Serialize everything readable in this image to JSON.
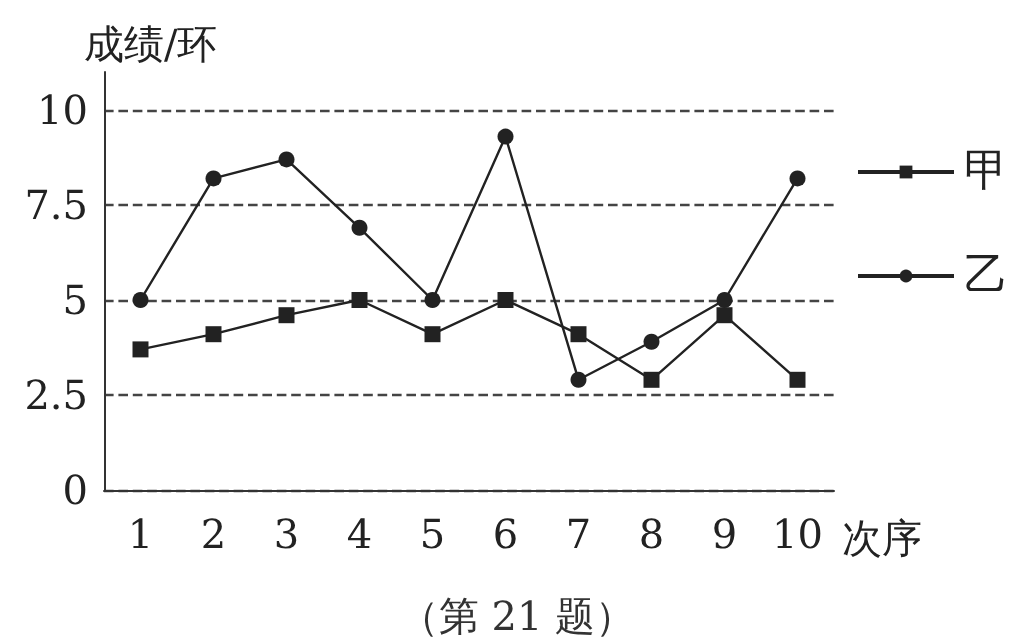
{
  "chart_data": {
    "type": "line",
    "xlabel": "次序",
    "ylabel": "成绩/环",
    "annotations": [
      "（第 21 题）"
    ],
    "categories": [
      "1",
      "2",
      "3",
      "4",
      "5",
      "6",
      "7",
      "8",
      "9",
      "10"
    ],
    "series": [
      {
        "name": "甲",
        "color": "#222222",
        "marker": "square",
        "values": [
          3.7,
          4.1,
          4.6,
          5,
          4.1,
          5,
          4.1,
          2.9,
          4.6,
          2.9
        ]
      },
      {
        "name": "乙",
        "color": "#222222",
        "marker": "circle",
        "values": [
          5,
          8.2,
          8.7,
          6.9,
          5,
          9.3,
          2.9,
          3.9,
          5,
          8.2
        ]
      }
    ],
    "ylim": [
      0,
      11
    ],
    "yticks": [
      0,
      2.5,
      5,
      7.5,
      10
    ],
    "grid": "y",
    "legend": "right",
    "line_style": "solid"
  }
}
